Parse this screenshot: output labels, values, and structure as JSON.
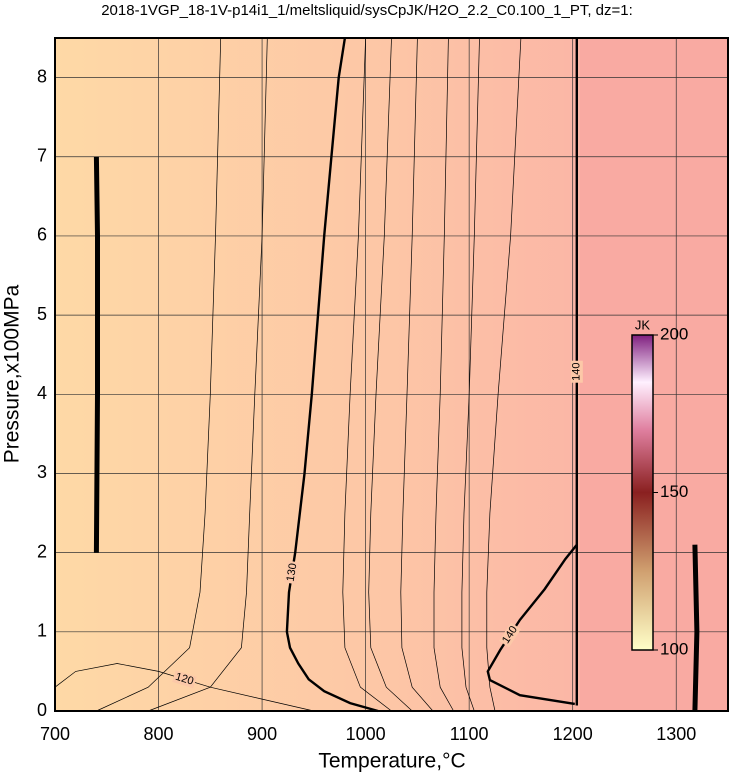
{
  "chart_data": {
    "type": "contour",
    "title": "2018-1VGP_18-1V-p14i1_1/meltsliquid/sysCpJK/H2O_2.2_C0.100_1_PT, dz=1:",
    "x_label": "Temperature,°C",
    "y_label": "Pressure,x100MPa",
    "xlim": [
      700,
      1350
    ],
    "ylim": [
      0,
      8.5
    ],
    "xticks": [
      700,
      800,
      900,
      1000,
      1100,
      1200,
      1300
    ],
    "yticks": [
      0,
      1,
      2,
      3,
      4,
      5,
      6,
      7,
      8
    ],
    "grid": true,
    "colorbar": {
      "label": "JK",
      "lim": [
        100,
        200
      ],
      "ticks": [
        100,
        150,
        200
      ]
    },
    "contours": [
      {
        "label": "130",
        "color": "#000000",
        "width": "thick",
        "x": [
          1012,
          985,
          960,
          945,
          935,
          927,
          924,
          926,
          932,
          941,
          948,
          954,
          960,
          967,
          974,
          980
        ],
        "y": [
          0,
          0.1,
          0.25,
          0.4,
          0.6,
          0.8,
          1,
          1.5,
          2,
          3,
          4,
          5,
          6,
          7,
          8,
          8.5
        ]
      },
      {
        "label": "140",
        "color": "#000000",
        "width": "thick",
        "x": [
          1204,
          1204
        ],
        "y": [
          0.07,
          8.5
        ]
      },
      {
        "label": "140",
        "color": "#000000",
        "width": "thick",
        "x": [
          1202,
          1149,
          1120,
          1118,
          1130,
          1149,
          1173,
          1193,
          1204
        ],
        "y": [
          0.09,
          0.2,
          0.39,
          0.5,
          0.77,
          1.15,
          1.54,
          1.92,
          2.1
        ]
      },
      {
        "label": "120",
        "color": "#000000",
        "width": "thin",
        "x": [
          700,
          720,
          760,
          800,
          850,
          900,
          950
        ],
        "y": [
          0.3,
          0.5,
          0.6,
          0.5,
          0.3,
          0.15,
          0
        ]
      },
      {
        "color": "#000000",
        "width": "bold",
        "x": [
          740,
          741,
          741,
          740
        ],
        "y": [
          2,
          4,
          6,
          7
        ]
      },
      {
        "color": "#000000",
        "width": "bold",
        "x": [
          1318,
          1320,
          1318
        ],
        "y": [
          0,
          1,
          2.1
        ]
      },
      {
        "color": "#000000",
        "width": "thin",
        "x": [
          860,
          855,
          850,
          845,
          840,
          830,
          790,
          740
        ],
        "y": [
          8.5,
          6,
          4,
          2.5,
          1.5,
          0.8,
          0.3,
          0
        ]
      },
      {
        "color": "#000000",
        "width": "thin",
        "x": [
          905,
          900,
          893,
          888,
          885,
          880,
          850,
          790
        ],
        "y": [
          8.5,
          6,
          4,
          2.5,
          1.5,
          0.8,
          0.3,
          0
        ]
      },
      {
        "color": "#000000",
        "width": "thin",
        "x": [
          1000,
          993,
          985,
          980,
          978,
          980,
          995,
          1025
        ],
        "y": [
          8.5,
          6,
          4,
          2.5,
          1.5,
          0.8,
          0.3,
          0
        ]
      },
      {
        "color": "#000000",
        "width": "thin",
        "x": [
          1025,
          1018,
          1010,
          1005,
          1003,
          1005,
          1020,
          1045
        ],
        "y": [
          8.5,
          6,
          4,
          2.5,
          1.5,
          0.8,
          0.3,
          0
        ]
      },
      {
        "color": "#000000",
        "width": "thin",
        "x": [
          1050,
          1045,
          1040,
          1036,
          1034,
          1035,
          1045,
          1065
        ],
        "y": [
          8.5,
          6,
          4,
          2.5,
          1.5,
          0.8,
          0.3,
          0
        ]
      },
      {
        "color": "#000000",
        "width": "thin",
        "x": [
          1080,
          1076,
          1072,
          1068,
          1066,
          1066,
          1072,
          1085
        ],
        "y": [
          8.5,
          6,
          4,
          2.5,
          1.5,
          0.8,
          0.3,
          0
        ]
      },
      {
        "color": "#000000",
        "width": "thin",
        "x": [
          1110,
          1105,
          1100,
          1095,
          1093,
          1093,
          1097,
          1105
        ],
        "y": [
          8.5,
          6,
          4,
          2.5,
          1.5,
          0.8,
          0.3,
          0
        ]
      },
      {
        "color": "#000000",
        "width": "thin",
        "x": [
          1150,
          1140,
          1128,
          1120,
          1117,
          1117,
          1120,
          1125
        ],
        "y": [
          8.5,
          6,
          4,
          2.5,
          1.5,
          0.8,
          0.3,
          0
        ]
      }
    ]
  }
}
